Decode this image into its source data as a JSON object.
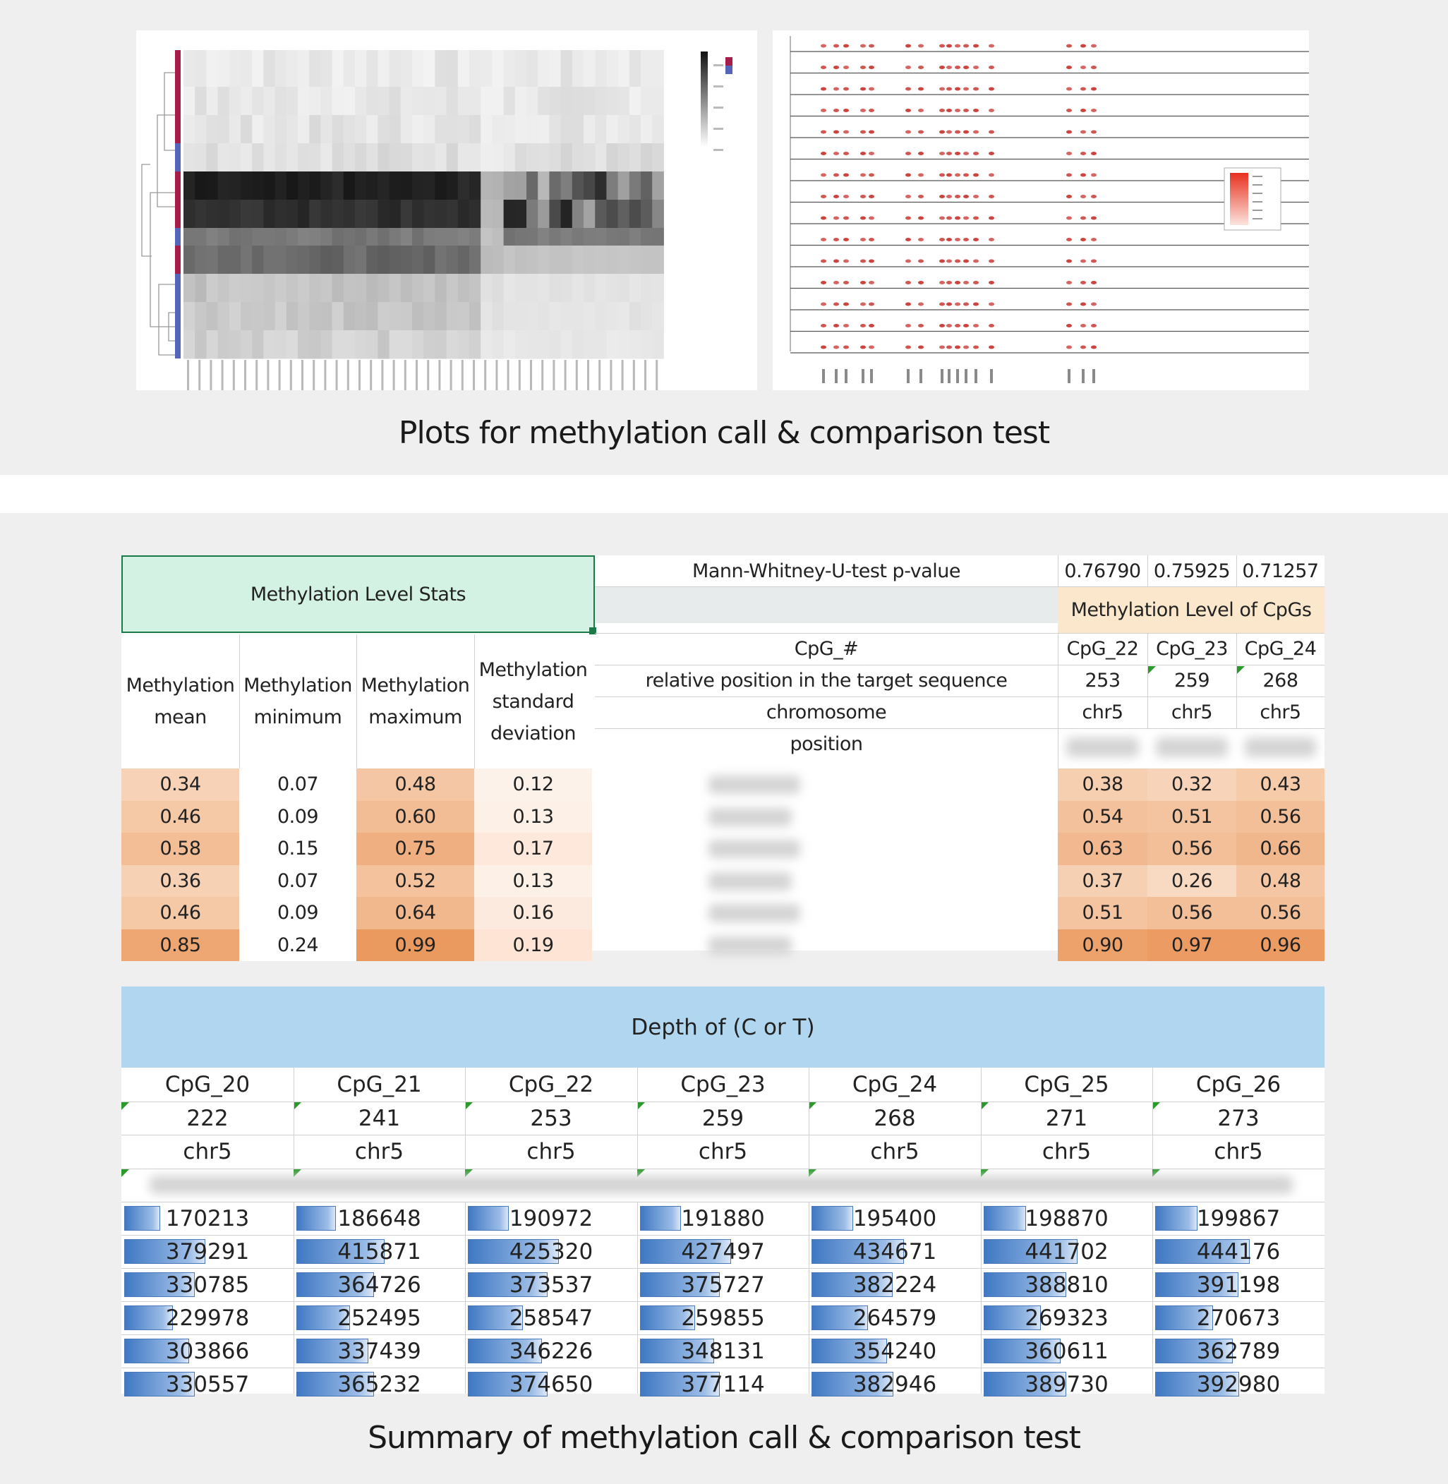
{
  "captions": {
    "top": "Plots for methylation call & comparison test",
    "bottom": "Summary of methylation call & comparison test"
  },
  "heatmap": {
    "rows": 11,
    "cols": 42,
    "colors": {
      "low": "#f4f4f4",
      "high": "#151515",
      "group_a": "#a51d48",
      "group_b": "#5566b8"
    }
  },
  "dotplot": {
    "rows": 15,
    "dot_color": "#c8322c",
    "legend_gradient": [
      "#e8311f",
      "#fbe4de"
    ]
  },
  "stats": {
    "header": "Methylation Level Stats",
    "col_headers": [
      "Methylation mean",
      "Methylation minimum",
      "Methylation maximum",
      "Methylation standard deviation"
    ],
    "pvalue_label": "Mann-Whitney-U-test p-value",
    "pvalues": [
      "0.76790",
      "0.75925",
      "0.71257"
    ],
    "cpg_group_label": "Methylation Level of CpGs",
    "row_labels": [
      "CpG_#",
      "relative position in the target sequence",
      "chromosome",
      "position"
    ],
    "cpg_names": [
      "CpG_22",
      "CpG_23",
      "CpG_24"
    ],
    "cpg_positions": [
      "253",
      "259",
      "268"
    ],
    "cpg_chrom": [
      "chr5",
      "chr5",
      "chr5"
    ],
    "stats_rows": [
      [
        "0.34",
        "0.07",
        "0.48",
        "0.12"
      ],
      [
        "0.46",
        "0.09",
        "0.60",
        "0.13"
      ],
      [
        "0.58",
        "0.15",
        "0.75",
        "0.17"
      ],
      [
        "0.36",
        "0.07",
        "0.52",
        "0.13"
      ],
      [
        "0.46",
        "0.09",
        "0.64",
        "0.16"
      ],
      [
        "0.85",
        "0.24",
        "0.99",
        "0.19"
      ]
    ],
    "cpg_values": [
      [
        "0.38",
        "0.32",
        "0.43"
      ],
      [
        "0.54",
        "0.51",
        "0.56"
      ],
      [
        "0.63",
        "0.56",
        "0.66"
      ],
      [
        "0.37",
        "0.26",
        "0.48"
      ],
      [
        "0.51",
        "0.56",
        "0.56"
      ],
      [
        "0.90",
        "0.97",
        "0.96"
      ]
    ]
  },
  "depth": {
    "header": "Depth of (C or T)",
    "columns": [
      {
        "name": "CpG_20",
        "pos": "222",
        "chrom": "chr5",
        "values": [
          "170213",
          "379291",
          "330785",
          "229978",
          "303866",
          "330557"
        ]
      },
      {
        "name": "CpG_21",
        "pos": "241",
        "chrom": "chr5",
        "values": [
          "186648",
          "415871",
          "364726",
          "252495",
          "337439",
          "365232"
        ]
      },
      {
        "name": "CpG_22",
        "pos": "253",
        "chrom": "chr5",
        "values": [
          "190972",
          "425320",
          "373537",
          "258547",
          "346226",
          "374650"
        ]
      },
      {
        "name": "CpG_23",
        "pos": "259",
        "chrom": "chr5",
        "values": [
          "191880",
          "427497",
          "375727",
          "259855",
          "348131",
          "377114"
        ]
      },
      {
        "name": "CpG_24",
        "pos": "268",
        "chrom": "chr5",
        "values": [
          "195400",
          "434671",
          "382224",
          "264579",
          "354240",
          "382946"
        ]
      },
      {
        "name": "CpG_25",
        "pos": "271",
        "chrom": "chr5",
        "values": [
          "198870",
          "441702",
          "388810",
          "269323",
          "360611",
          "389730"
        ]
      },
      {
        "name": "CpG_26",
        "pos": "273",
        "chrom": "chr5",
        "values": [
          "199867",
          "444176",
          "391198",
          "270673",
          "362789",
          "392980"
        ]
      }
    ],
    "max_value": 444176,
    "colors": {
      "header": "#b1d6ef"
    }
  }
}
